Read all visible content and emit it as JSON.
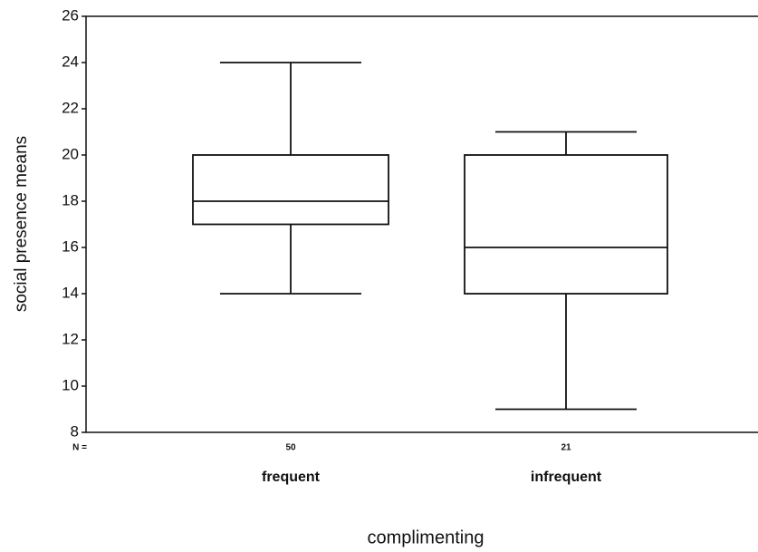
{
  "chart_data": {
    "type": "box",
    "y_label": "social presence means",
    "x_label": "complimenting",
    "n_label": "N =",
    "categories": [
      "frequent",
      "infrequent"
    ],
    "n": [
      50,
      21
    ],
    "boxes": [
      {
        "min": 14,
        "q1": 17,
        "median": 18,
        "q3": 20,
        "max": 24
      },
      {
        "min": 9,
        "q1": 14,
        "median": 16,
        "q3": 20,
        "max": 21
      }
    ],
    "ylim": [
      8,
      26
    ],
    "yticks": [
      8,
      10,
      12,
      14,
      16,
      18,
      20,
      22,
      24,
      26
    ],
    "grid": false
  }
}
